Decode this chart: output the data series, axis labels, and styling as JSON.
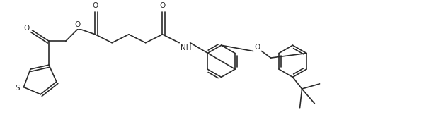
{
  "background_color": "#ffffff",
  "line_color": "#2a2a2a",
  "figsize": [
    5.99,
    1.73
  ],
  "dpi": 100,
  "xlim": [
    0,
    10.0
  ],
  "ylim": [
    0,
    2.89
  ],
  "lw": 1.2,
  "dbo": 0.055,
  "fs": 7.5,
  "ring_r": 0.38,
  "ring5_r": 0.3
}
